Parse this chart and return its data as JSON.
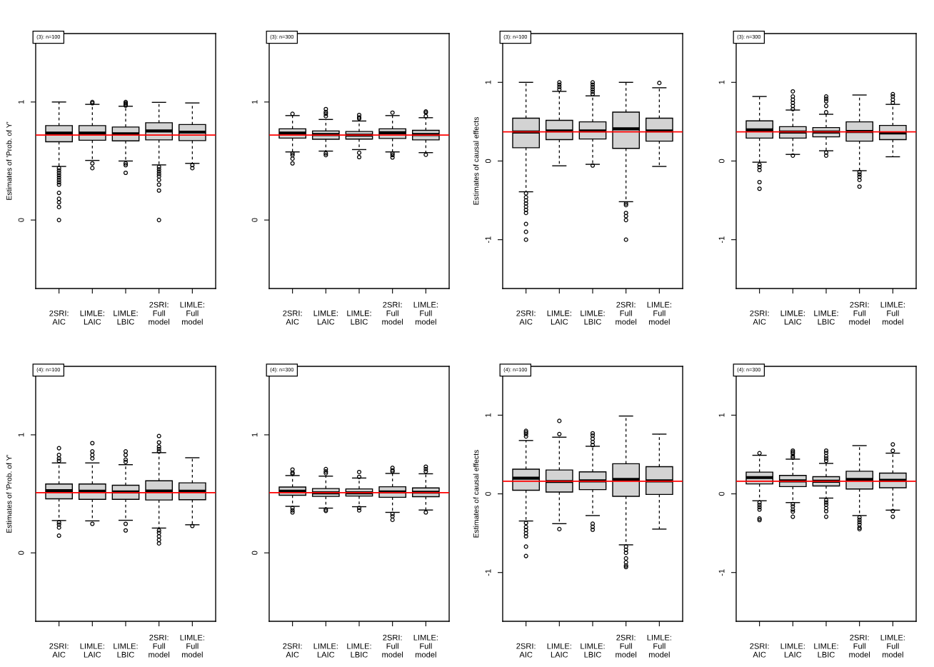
{
  "chart_data": [
    {
      "type": "box",
      "ylabel": "Estimates of 'Prob. of Y'",
      "annotations": [
        "(3): n=100"
      ],
      "categories": [
        "2SRI:\nAIC",
        "LIMLE:\nLAIC",
        "LIMLE:\nLBIC",
        "2SRI:\nFull\nmodel",
        "LIMLE:\nFull\nmodel"
      ],
      "ylim": [
        -0.58,
        1.58
      ],
      "yticks": [
        0,
        1
      ],
      "ref_lines": [
        {
          "axis": "y",
          "value": 0.72,
          "color": "#ff0000"
        }
      ],
      "boxes": [
        {
          "low": 0.454,
          "q1": 0.663,
          "median": 0.737,
          "q3": 0.8,
          "high": 1.0,
          "outliers": [
            0.44,
            0.42,
            0.4,
            0.38,
            0.36,
            0.34,
            0.32,
            0.3,
            0.23,
            0.18,
            0.15,
            0.11,
            0.0
          ]
        },
        {
          "low": 0.505,
          "q1": 0.676,
          "median": 0.737,
          "q3": 0.8,
          "high": 0.98,
          "outliers": [
            1.0,
            0.99,
            0.48,
            0.44
          ]
        },
        {
          "low": 0.5,
          "q1": 0.671,
          "median": 0.73,
          "q3": 0.788,
          "high": 0.964,
          "outliers": [
            1.0,
            0.99,
            0.98,
            0.97,
            0.48,
            0.465,
            0.4
          ]
        },
        {
          "low": 0.467,
          "q1": 0.679,
          "median": 0.755,
          "q3": 0.824,
          "high": 0.997,
          "outliers": [
            0.45,
            0.43,
            0.41,
            0.39,
            0.37,
            0.34,
            0.3,
            0.25,
            0.0
          ]
        },
        {
          "low": 0.48,
          "q1": 0.673,
          "median": 0.745,
          "q3": 0.809,
          "high": 0.992,
          "outliers": [
            0.465,
            0.44
          ]
        }
      ]
    },
    {
      "type": "box",
      "annotations": [
        "(3): n=300"
      ],
      "categories": [
        "2SRI:\nAIC",
        "LIMLE:\nLAIC",
        "LIMLE:\nLBIC",
        "2SRI:\nFull\nmodel",
        "LIMLE:\nFull\nmodel"
      ],
      "ylim": [
        -0.58,
        1.58
      ],
      "yticks": [
        0,
        1
      ],
      "ref_lines": [
        {
          "axis": "y",
          "value": 0.72,
          "color": "#ff0000"
        }
      ],
      "boxes": [
        {
          "low": 0.577,
          "q1": 0.694,
          "median": 0.737,
          "q3": 0.773,
          "high": 0.885,
          "outliers": [
            0.9,
            0.565,
            0.55,
            0.52,
            0.48
          ]
        },
        {
          "low": 0.584,
          "q1": 0.684,
          "median": 0.724,
          "q3": 0.755,
          "high": 0.852,
          "outliers": [
            0.94,
            0.915,
            0.9,
            0.88,
            0.565,
            0.55
          ]
        },
        {
          "low": 0.597,
          "q1": 0.686,
          "median": 0.719,
          "q3": 0.75,
          "high": 0.839,
          "outliers": [
            0.89,
            0.87,
            0.86,
            0.57,
            0.533
          ]
        },
        {
          "low": 0.577,
          "q1": 0.691,
          "median": 0.74,
          "q3": 0.773,
          "high": 0.885,
          "outliers": [
            0.91,
            0.565,
            0.55,
            0.53
          ]
        },
        {
          "low": 0.571,
          "q1": 0.679,
          "median": 0.724,
          "q3": 0.76,
          "high": 0.867,
          "outliers": [
            0.92,
            0.91,
            0.88,
            0.553
          ]
        }
      ]
    },
    {
      "type": "box",
      "ylabel": "Estimates of causal effects",
      "annotations": [
        "(3): n=100"
      ],
      "categories": [
        "2SRI:\nAIC",
        "LIMLE:\nLAIC",
        "LIMLE:\nLBIC",
        "2SRI:\nFull\nmodel",
        "LIMLE:\nFull\nmodel"
      ],
      "ylim": [
        -1.62,
        1.62
      ],
      "yticks": [
        -1,
        0,
        1
      ],
      "ref_lines": [
        {
          "axis": "y",
          "value": 0.37,
          "color": "#ff0000"
        }
      ],
      "boxes": [
        {
          "low": -0.391,
          "q1": 0.169,
          "median": 0.368,
          "q3": 0.544,
          "high": 1.0,
          "outliers": [
            -0.41,
            -0.46,
            -0.5,
            -0.54,
            -0.58,
            -0.62,
            -0.66,
            -0.8,
            -0.9,
            -1.0
          ]
        },
        {
          "low": -0.061,
          "q1": 0.272,
          "median": 0.383,
          "q3": 0.517,
          "high": 0.885,
          "outliers": [
            1.0,
            0.97,
            0.94,
            0.91
          ]
        },
        {
          "low": -0.042,
          "q1": 0.28,
          "median": 0.383,
          "q3": 0.498,
          "high": 0.828,
          "outliers": [
            1.0,
            0.97,
            0.94,
            0.91,
            0.88,
            0.85,
            -0.057
          ]
        },
        {
          "low": -0.517,
          "q1": 0.161,
          "median": 0.41,
          "q3": 0.621,
          "high": 1.0,
          "outliers": [
            -0.54,
            -0.56,
            -0.66,
            -0.7,
            -0.75,
            -1.0
          ]
        },
        {
          "low": -0.069,
          "q1": 0.253,
          "median": 0.383,
          "q3": 0.544,
          "high": 0.931,
          "outliers": [
            0.992
          ]
        }
      ]
    },
    {
      "type": "box",
      "annotations": [
        "(3): n=300"
      ],
      "categories": [
        "2SRI:\nAIC",
        "LIMLE:\nLAIC",
        "LIMLE:\nLBIC",
        "2SRI:\nFull\nmodel",
        "LIMLE:\nFull\nmodel"
      ],
      "ylim": [
        -1.62,
        1.62
      ],
      "yticks": [
        -1,
        0,
        1
      ],
      "ref_lines": [
        {
          "axis": "y",
          "value": 0.37,
          "color": "#ff0000"
        }
      ],
      "boxes": [
        {
          "low": -0.015,
          "q1": 0.291,
          "median": 0.395,
          "q3": 0.51,
          "high": 0.82,
          "outliers": [
            -0.046,
            -0.077,
            -0.115,
            -0.268,
            -0.352
          ]
        },
        {
          "low": 0.084,
          "q1": 0.291,
          "median": 0.368,
          "q3": 0.437,
          "high": 0.648,
          "outliers": [
            0.885,
            0.82,
            0.78,
            0.74,
            0.7,
            0.66,
            0.069
          ]
        },
        {
          "low": 0.13,
          "q1": 0.307,
          "median": 0.368,
          "q3": 0.425,
          "high": 0.594,
          "outliers": [
            0.82,
            0.79,
            0.76,
            0.7,
            0.62,
            0.107,
            0.069
          ]
        },
        {
          "low": -0.123,
          "q1": 0.253,
          "median": 0.375,
          "q3": 0.498,
          "high": 0.839,
          "outliers": [
            -0.14,
            -0.17,
            -0.2,
            -0.24,
            -0.325
          ]
        },
        {
          "low": 0.054,
          "q1": 0.272,
          "median": 0.356,
          "q3": 0.452,
          "high": 0.72,
          "outliers": [
            0.85,
            0.82,
            0.78,
            0.74
          ]
        }
      ]
    },
    {
      "type": "box",
      "ylabel": "Estimates of 'Prob. of Y'",
      "annotations": [
        "(4): n=100"
      ],
      "categories": [
        "2SRI:\nAIC",
        "LIMLE:\nLAIC",
        "LIMLE:\nLBIC",
        "2SRI:\nFull\nmodel",
        "LIMLE:\nFull\nmodel"
      ],
      "ylim": [
        -0.58,
        1.58
      ],
      "yticks": [
        0,
        1
      ],
      "ref_lines": [
        {
          "axis": "y",
          "value": 0.51,
          "color": "#ff0000"
        }
      ],
      "boxes": [
        {
          "low": 0.274,
          "q1": 0.458,
          "median": 0.527,
          "q3": 0.583,
          "high": 0.762,
          "outliers": [
            0.887,
            0.83,
            0.8,
            0.78,
            0.258,
            0.24,
            0.215,
            0.146
          ]
        },
        {
          "low": 0.271,
          "q1": 0.453,
          "median": 0.522,
          "q3": 0.583,
          "high": 0.762,
          "outliers": [
            0.93,
            0.86,
            0.83,
            0.8,
            0.246
          ]
        },
        {
          "low": 0.276,
          "q1": 0.453,
          "median": 0.517,
          "q3": 0.573,
          "high": 0.747,
          "outliers": [
            0.86,
            0.83,
            0.79,
            0.77,
            0.246,
            0.19
          ]
        },
        {
          "low": 0.21,
          "q1": 0.448,
          "median": 0.524,
          "q3": 0.611,
          "high": 0.849,
          "outliers": [
            0.99,
            0.936,
            0.9,
            0.88,
            0.86,
            0.19,
            0.17,
            0.14,
            0.11,
            0.08
          ]
        },
        {
          "low": 0.238,
          "q1": 0.45,
          "median": 0.522,
          "q3": 0.593,
          "high": 0.806,
          "outliers": [
            0.228
          ]
        }
      ]
    },
    {
      "type": "box",
      "annotations": [
        "(4): n=300"
      ],
      "categories": [
        "2SRI:\nAIC",
        "LIMLE:\nLAIC",
        "LIMLE:\nLBIC",
        "2SRI:\nFull\nmodel",
        "LIMLE:\nFull\nmodel"
      ],
      "ylim": [
        -0.58,
        1.58
      ],
      "yticks": [
        0,
        1
      ],
      "ref_lines": [
        {
          "axis": "y",
          "value": 0.51,
          "color": "#ff0000"
        }
      ],
      "boxes": [
        {
          "low": 0.394,
          "q1": 0.488,
          "median": 0.522,
          "q3": 0.558,
          "high": 0.655,
          "outliers": [
            0.706,
            0.68,
            0.67,
            0.38,
            0.36,
            0.343
          ]
        },
        {
          "low": 0.379,
          "q1": 0.478,
          "median": 0.509,
          "q3": 0.545,
          "high": 0.65,
          "outliers": [
            0.71,
            0.69,
            0.675,
            0.368,
            0.356
          ]
        },
        {
          "low": 0.391,
          "q1": 0.481,
          "median": 0.509,
          "q3": 0.542,
          "high": 0.634,
          "outliers": [
            0.685,
            0.644,
            0.381,
            0.36
          ]
        },
        {
          "low": 0.343,
          "q1": 0.471,
          "median": 0.517,
          "q3": 0.56,
          "high": 0.673,
          "outliers": [
            0.72,
            0.7,
            0.69,
            0.33,
            0.31,
            0.28
          ]
        },
        {
          "low": 0.363,
          "q1": 0.476,
          "median": 0.514,
          "q3": 0.55,
          "high": 0.67,
          "outliers": [
            0.73,
            0.71,
            0.69,
            0.343
          ]
        }
      ]
    },
    {
      "type": "box",
      "ylabel": "Estimates of causal effects",
      "annotations": [
        "(4): n=100"
      ],
      "categories": [
        "2SRI:\nAIC",
        "LIMLE:\nLAIC",
        "LIMLE:\nLBIC",
        "2SRI:\nFull\nmodel",
        "LIMLE:\nFull\nmodel"
      ],
      "ylim": [
        -1.62,
        1.62
      ],
      "yticks": [
        -1,
        0,
        1
      ],
      "ref_lines": [
        {
          "axis": "y",
          "value": 0.16,
          "color": "#ff0000"
        }
      ],
      "boxes": [
        {
          "low": -0.345,
          "q1": 0.046,
          "median": 0.199,
          "q3": 0.314,
          "high": 0.678,
          "outliers": [
            0.8,
            0.78,
            0.76,
            0.73,
            -0.37,
            -0.42,
            -0.46,
            -0.5,
            -0.54,
            -0.67,
            -0.79
          ]
        },
        {
          "low": -0.379,
          "q1": 0.023,
          "median": 0.157,
          "q3": 0.303,
          "high": 0.72,
          "outliers": [
            0.927,
            0.76,
            -0.448
          ]
        },
        {
          "low": -0.276,
          "q1": 0.054,
          "median": 0.165,
          "q3": 0.28,
          "high": 0.605,
          "outliers": [
            0.77,
            0.74,
            0.7,
            0.66,
            0.62,
            -0.38,
            -0.418,
            -0.456
          ]
        },
        {
          "low": -0.648,
          "q1": -0.031,
          "median": 0.184,
          "q3": 0.383,
          "high": 0.989,
          "outliers": [
            -0.67,
            -0.71,
            -0.75,
            -0.82,
            -0.87,
            -0.91,
            -0.93
          ]
        },
        {
          "low": -0.448,
          "q1": -0.008,
          "median": 0.165,
          "q3": 0.345,
          "high": 0.759
        }
      ]
    },
    {
      "type": "box",
      "annotations": [
        "(4): n=300"
      ],
      "categories": [
        "2SRI:\nAIC",
        "LIMLE:\nLAIC",
        "LIMLE:\nLBIC",
        "2SRI:\nFull\nmodel",
        "LIMLE:\nFull\nmodel"
      ],
      "ylim": [
        -1.62,
        1.62
      ],
      "yticks": [
        -1,
        0,
        1
      ],
      "ref_lines": [
        {
          "axis": "y",
          "value": 0.16,
          "color": "#ff0000"
        }
      ],
      "boxes": [
        {
          "low": -0.088,
          "q1": 0.126,
          "median": 0.207,
          "q3": 0.276,
          "high": 0.49,
          "outliers": [
            0.517,
            -0.11,
            -0.14,
            -0.17,
            -0.2,
            -0.314,
            -0.333
          ]
        },
        {
          "low": -0.111,
          "q1": 0.092,
          "median": 0.165,
          "q3": 0.234,
          "high": 0.441,
          "outliers": [
            0.55,
            0.53,
            0.51,
            0.48,
            0.46,
            -0.13,
            -0.16,
            -0.2,
            -0.226,
            -0.291
          ]
        },
        {
          "low": -0.054,
          "q1": 0.1,
          "median": 0.161,
          "q3": 0.218,
          "high": 0.387,
          "outliers": [
            0.55,
            0.52,
            0.48,
            0.45,
            0.42,
            -0.08,
            -0.11,
            -0.14,
            -0.18,
            -0.22,
            -0.291
          ]
        },
        {
          "low": -0.276,
          "q1": 0.061,
          "median": 0.184,
          "q3": 0.287,
          "high": 0.613,
          "outliers": [
            -0.3,
            -0.33,
            -0.36,
            -0.39,
            -0.43,
            -0.448
          ]
        },
        {
          "low": -0.207,
          "q1": 0.077,
          "median": 0.172,
          "q3": 0.264,
          "high": 0.517,
          "outliers": [
            0.628,
            0.548,
            -0.218,
            -0.291
          ]
        }
      ]
    }
  ]
}
